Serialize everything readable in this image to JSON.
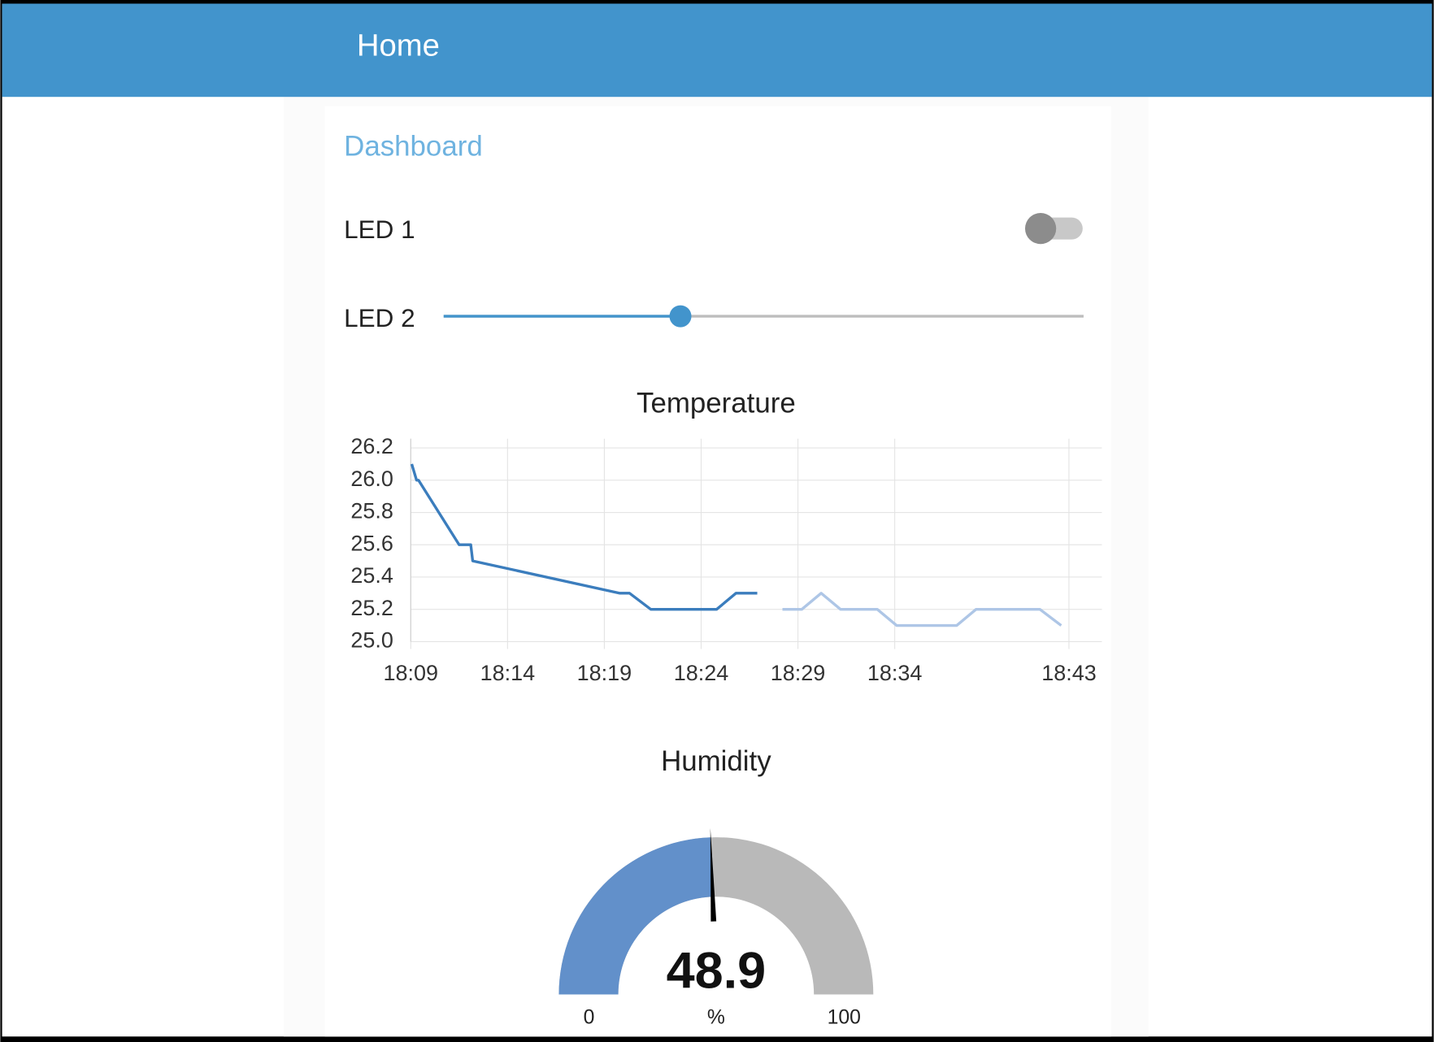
{
  "header": {
    "title": "Home"
  },
  "group": {
    "title": "Dashboard"
  },
  "switch": {
    "label": "LED 1",
    "on": false
  },
  "slider": {
    "label": "LED 2",
    "value": 37,
    "min": 0,
    "max": 100
  },
  "chart_data": [
    {
      "type": "line",
      "title": "Temperature",
      "series": [
        {
          "color": "#3b7dbd",
          "x": [
            1089.05,
            1089.3,
            1089.4,
            1091.5,
            1092.1,
            1092.2,
            1099.8,
            1100.3,
            1101.4,
            1104.8,
            1105.8,
            1106.9
          ],
          "values": [
            26.1,
            26.0,
            26.0,
            25.6,
            25.6,
            25.5,
            25.3,
            25.3,
            25.2,
            25.2,
            25.3,
            25.3
          ]
        },
        {
          "color": "#aec6e6",
          "x": [
            1108.2,
            1109.2,
            1110.2,
            1111.2,
            1113.1,
            1114.1,
            1117.2,
            1118.2,
            1121.5,
            1122.6
          ],
          "values": [
            25.2,
            25.2,
            25.3,
            25.2,
            25.2,
            25.1,
            25.1,
            25.2,
            25.2,
            25.1
          ]
        }
      ],
      "xlim": [
        1089,
        1124.7
      ],
      "xticks": [
        {
          "value": 1089,
          "label": "18:09"
        },
        {
          "value": 1094,
          "label": "18:14"
        },
        {
          "value": 1099,
          "label": "18:19"
        },
        {
          "value": 1104,
          "label": "18:24"
        },
        {
          "value": 1109,
          "label": "18:29"
        },
        {
          "value": 1114,
          "label": "18:34"
        },
        {
          "value": 1123,
          "label": "18:43"
        }
      ],
      "ylim": [
        25.0,
        26.2
      ],
      "yticks": [
        {
          "value": 25.0,
          "label": "25.0"
        },
        {
          "value": 25.2,
          "label": "25.2"
        },
        {
          "value": 25.4,
          "label": "25.4"
        },
        {
          "value": 25.6,
          "label": "25.6"
        },
        {
          "value": 25.8,
          "label": "25.8"
        },
        {
          "value": 26.0,
          "label": "26.0"
        },
        {
          "value": 26.2,
          "label": "26.2"
        }
      ],
      "grid": true
    },
    {
      "type": "gauge",
      "title": "Humidity",
      "value": 48.9,
      "min": 0,
      "max": 100,
      "unit": "%",
      "color": "#6290ca",
      "track_color": "#b9b9b9"
    }
  ]
}
